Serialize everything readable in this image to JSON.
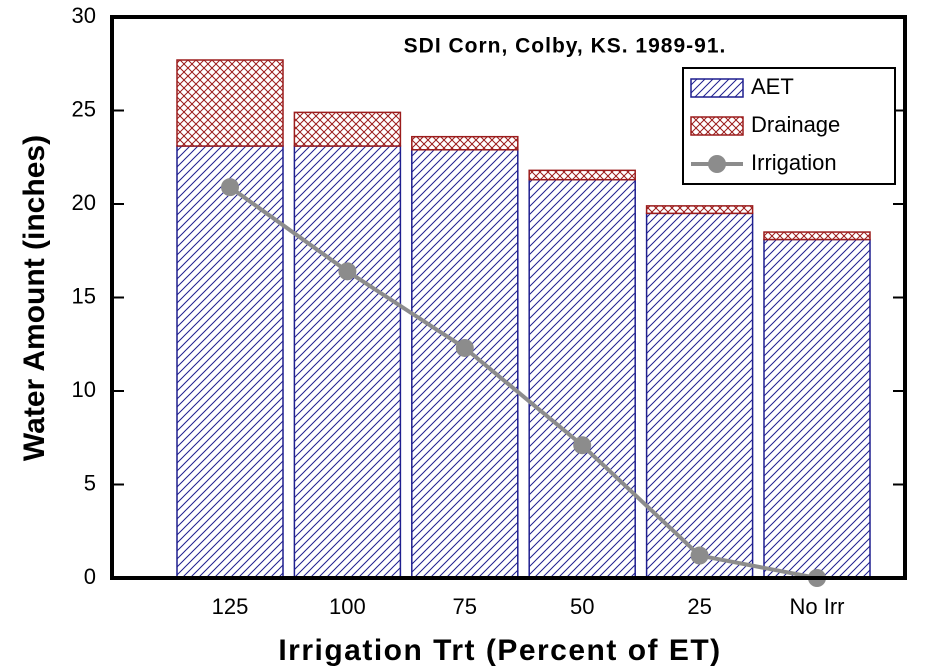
{
  "chart_data": {
    "type": "bar",
    "title": "SDI Corn, Colby, KS. 1989-91.",
    "x_label": "Irrigation Trt (Percent of ET)",
    "y_label": "Water Amount (inches)",
    "categories": [
      "125",
      "100",
      "75",
      "50",
      "25",
      "No Irr"
    ],
    "stacked": true,
    "series": [
      {
        "name": "AET",
        "type": "bar",
        "color": "#1f1f8f",
        "values": [
          23.1,
          23.1,
          22.9,
          21.3,
          19.5,
          18.1
        ]
      },
      {
        "name": "Drainage",
        "type": "bar",
        "color": "#9b1c1c",
        "values": [
          4.6,
          1.8,
          0.7,
          0.5,
          0.4,
          0.4
        ]
      },
      {
        "name": "Irrigation",
        "type": "line",
        "color": "#8c8c8c",
        "values": [
          20.9,
          16.4,
          12.3,
          7.1,
          1.2,
          0
        ]
      }
    ],
    "ylim": [
      0,
      30
    ],
    "yticks": [
      0,
      5,
      10,
      15,
      20,
      25,
      30
    ],
    "legend": "upper right"
  }
}
